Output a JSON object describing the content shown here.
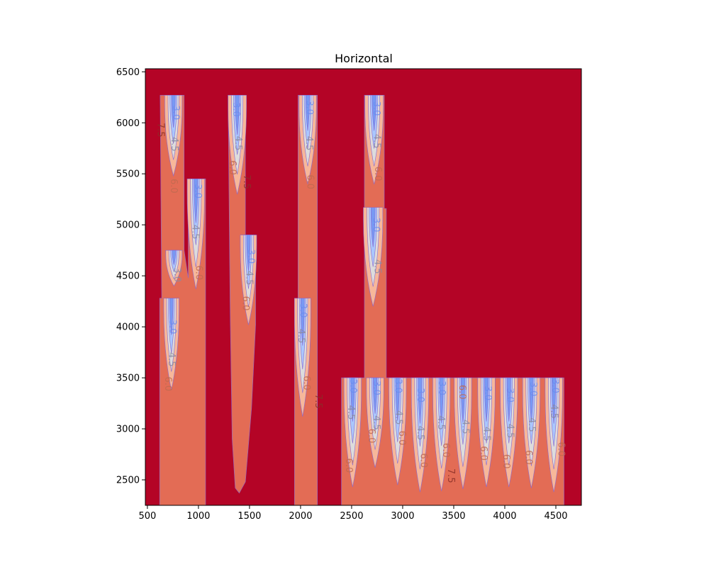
{
  "chart_data": {
    "type": "contour",
    "title": "Horizontal",
    "xlabel": "",
    "ylabel": "",
    "xlim": [
      480,
      4750
    ],
    "ylim": [
      2250,
      6530
    ],
    "x_ticks": [
      500,
      1000,
      1500,
      2000,
      2500,
      3000,
      3500,
      4000,
      4500
    ],
    "y_ticks": [
      2500,
      3000,
      3500,
      4000,
      4500,
      5000,
      5500,
      6000,
      6500
    ],
    "colormap": "coolwarm",
    "grid": false,
    "levels": [
      3.0,
      4.5,
      6.0,
      7.5
    ],
    "colors": {
      "background": "#b40426",
      "level_7_5": "#e36c55",
      "level_6_0": "#f7b79a",
      "level_4_5": "#dddcdc",
      "level_3_0": "#aac7fd",
      "level_1_5": "#6b8df0",
      "contour_line": "#8a6ad0"
    },
    "features": [
      {
        "x": 755,
        "top": 6270,
        "bottom": 5480,
        "halfwidth": 85
      },
      {
        "x": 975,
        "top": 5450,
        "bottom": 4370,
        "halfwidth": 85
      },
      {
        "x": 760,
        "top": 4750,
        "bottom": 4400,
        "halfwidth": 80
      },
      {
        "x": 735,
        "top": 4280,
        "bottom": 3380,
        "halfwidth": 75
      },
      {
        "x": 1380,
        "top": 6270,
        "bottom": 5300,
        "halfwidth": 90
      },
      {
        "x": 1490,
        "top": 4900,
        "bottom": 4020,
        "halfwidth": 80
      },
      {
        "x": 2070,
        "top": 6270,
        "bottom": 5400,
        "halfwidth": 85
      },
      {
        "x": 2020,
        "top": 4280,
        "bottom": 3120,
        "halfwidth": 80
      },
      {
        "x": 2720,
        "top": 6270,
        "bottom": 5400,
        "halfwidth": 90
      },
      {
        "x": 2710,
        "top": 5170,
        "bottom": 4200,
        "halfwidth": 95
      },
      {
        "x": 2510,
        "top": 3500,
        "bottom": 2430,
        "halfwidth": 85
      },
      {
        "x": 2730,
        "top": 3500,
        "bottom": 2620,
        "halfwidth": 85
      },
      {
        "x": 2950,
        "top": 3500,
        "bottom": 2450,
        "halfwidth": 85
      },
      {
        "x": 3170,
        "top": 3500,
        "bottom": 2380,
        "halfwidth": 85
      },
      {
        "x": 3380,
        "top": 3500,
        "bottom": 2390,
        "halfwidth": 85
      },
      {
        "x": 3590,
        "top": 3500,
        "bottom": 2410,
        "halfwidth": 85
      },
      {
        "x": 3820,
        "top": 3500,
        "bottom": 2430,
        "halfwidth": 85
      },
      {
        "x": 4040,
        "top": 3500,
        "bottom": 2430,
        "halfwidth": 85
      },
      {
        "x": 4260,
        "top": 3500,
        "bottom": 2420,
        "halfwidth": 85
      },
      {
        "x": 4480,
        "top": 3500,
        "bottom": 2380,
        "halfwidth": 85
      }
    ],
    "contour_labels": [
      {
        "text": "3.0",
        "x": 775,
        "y": 6100,
        "color": "#6b8df0"
      },
      {
        "text": "4.5",
        "x": 760,
        "y": 5790,
        "color": "#8a8aa0"
      },
      {
        "text": "6.0",
        "x": 755,
        "y": 5380,
        "color": "#c06a50"
      },
      {
        "text": "7.5",
        "x": 625,
        "y": 5930,
        "color": "#8a3028"
      },
      {
        "text": "3.0",
        "x": 990,
        "y": 5330,
        "color": "#6b8df0"
      },
      {
        "text": "4.5",
        "x": 965,
        "y": 4930,
        "color": "#8a8aa0"
      },
      {
        "text": "6.0",
        "x": 1000,
        "y": 4530,
        "color": "#c06a50"
      },
      {
        "text": "3.0",
        "x": 790,
        "y": 4510,
        "color": "#8a8aa0"
      },
      {
        "text": "3.0",
        "x": 745,
        "y": 4000,
        "color": "#6b8df0"
      },
      {
        "text": "4.5",
        "x": 735,
        "y": 3680,
        "color": "#8a8aa0"
      },
      {
        "text": "6.0",
        "x": 700,
        "y": 3440,
        "color": "#c06a50"
      },
      {
        "text": "3.0",
        "x": 1365,
        "y": 6130,
        "color": "#6b8df0"
      },
      {
        "text": "4.5",
        "x": 1385,
        "y": 5800,
        "color": "#8a8aa0"
      },
      {
        "text": "6.0",
        "x": 1330,
        "y": 5560,
        "color": "#c06a50"
      },
      {
        "text": "7.5",
        "x": 1470,
        "y": 5420,
        "color": "#8a3028"
      },
      {
        "text": "3.0",
        "x": 1510,
        "y": 4690,
        "color": "#6b8df0"
      },
      {
        "text": "4.5",
        "x": 1495,
        "y": 4480,
        "color": "#8a8aa0"
      },
      {
        "text": "6.0",
        "x": 1460,
        "y": 4230,
        "color": "#c06a50"
      },
      {
        "text": "3.0",
        "x": 2085,
        "y": 6150,
        "color": "#6b8df0"
      },
      {
        "text": "4.5",
        "x": 2080,
        "y": 5800,
        "color": "#8a8aa0"
      },
      {
        "text": "6.0",
        "x": 2090,
        "y": 5420,
        "color": "#c06a50"
      },
      {
        "text": "3.0",
        "x": 2020,
        "y": 4160,
        "color": "#6b8df0"
      },
      {
        "text": "4.5",
        "x": 2005,
        "y": 3910,
        "color": "#8a8aa0"
      },
      {
        "text": "6.0",
        "x": 2055,
        "y": 3450,
        "color": "#c06a50"
      },
      {
        "text": "7.5",
        "x": 2170,
        "y": 3270,
        "color": "#8a3028"
      },
      {
        "text": "3.0",
        "x": 2740,
        "y": 6140,
        "color": "#6b8df0"
      },
      {
        "text": "4.5",
        "x": 2745,
        "y": 5820,
        "color": "#8a8aa0"
      },
      {
        "text": "6.0",
        "x": 2755,
        "y": 5500,
        "color": "#c06a50"
      },
      {
        "text": "3.0",
        "x": 2735,
        "y": 5000,
        "color": "#6b8df0"
      },
      {
        "text": "4.5",
        "x": 2750,
        "y": 4590,
        "color": "#8a8aa0"
      },
      {
        "text": "3.0",
        "x": 2510,
        "y": 3420,
        "color": "#6b8df0"
      },
      {
        "text": "4.5",
        "x": 2490,
        "y": 3160,
        "color": "#8a8aa0"
      },
      {
        "text": "6.0",
        "x": 2470,
        "y": 2640,
        "color": "#c06a50"
      },
      {
        "text": "3.0",
        "x": 2740,
        "y": 3400,
        "color": "#6b8df0"
      },
      {
        "text": "4.5",
        "x": 2740,
        "y": 3060,
        "color": "#8a8aa0"
      },
      {
        "text": "6.0",
        "x": 2690,
        "y": 2930,
        "color": "#c06a50"
      },
      {
        "text": "3.0",
        "x": 2950,
        "y": 3420,
        "color": "#6b8df0"
      },
      {
        "text": "4.5",
        "x": 2960,
        "y": 3110,
        "color": "#8a8aa0"
      },
      {
        "text": "6.0",
        "x": 2990,
        "y": 2910,
        "color": "#c06a50"
      },
      {
        "text": "3.0",
        "x": 3170,
        "y": 3330,
        "color": "#6b8df0"
      },
      {
        "text": "4.5",
        "x": 3170,
        "y": 2960,
        "color": "#8a8aa0"
      },
      {
        "text": "6.0",
        "x": 3200,
        "y": 2690,
        "color": "#c06a50"
      },
      {
        "text": "3.0",
        "x": 3380,
        "y": 3400,
        "color": "#6b8df0"
      },
      {
        "text": "4.5",
        "x": 3370,
        "y": 3060,
        "color": "#8a8aa0"
      },
      {
        "text": "6.0",
        "x": 3420,
        "y": 2790,
        "color": "#c06a50"
      },
      {
        "text": "7.5",
        "x": 3470,
        "y": 2540,
        "color": "#8a3028"
      },
      {
        "text": "6.0",
        "x": 3580,
        "y": 3360,
        "color": "#c06a50"
      },
      {
        "text": "4.5",
        "x": 3610,
        "y": 3020,
        "color": "#8a8aa0"
      },
      {
        "text": "3.0",
        "x": 3830,
        "y": 3350,
        "color": "#6b8df0"
      },
      {
        "text": "4.5",
        "x": 3820,
        "y": 2950,
        "color": "#8a8aa0"
      },
      {
        "text": "6.0",
        "x": 3790,
        "y": 2760,
        "color": "#c06a50"
      },
      {
        "text": "3.0",
        "x": 4050,
        "y": 3330,
        "color": "#6b8df0"
      },
      {
        "text": "4.5",
        "x": 4050,
        "y": 2980,
        "color": "#8a8aa0"
      },
      {
        "text": "6.0",
        "x": 4010,
        "y": 2680,
        "color": "#c06a50"
      },
      {
        "text": "3.0",
        "x": 4275,
        "y": 3390,
        "color": "#6b8df0"
      },
      {
        "text": "4.5",
        "x": 4260,
        "y": 3040,
        "color": "#8a8aa0"
      },
      {
        "text": "6.0",
        "x": 4230,
        "y": 2720,
        "color": "#c06a50"
      },
      {
        "text": "3.0",
        "x": 4490,
        "y": 3420,
        "color": "#6b8df0"
      },
      {
        "text": "4.5",
        "x": 4480,
        "y": 3170,
        "color": "#8a8aa0"
      },
      {
        "text": "6.0",
        "x": 4550,
        "y": 2800,
        "color": "#c06a50"
      }
    ]
  }
}
